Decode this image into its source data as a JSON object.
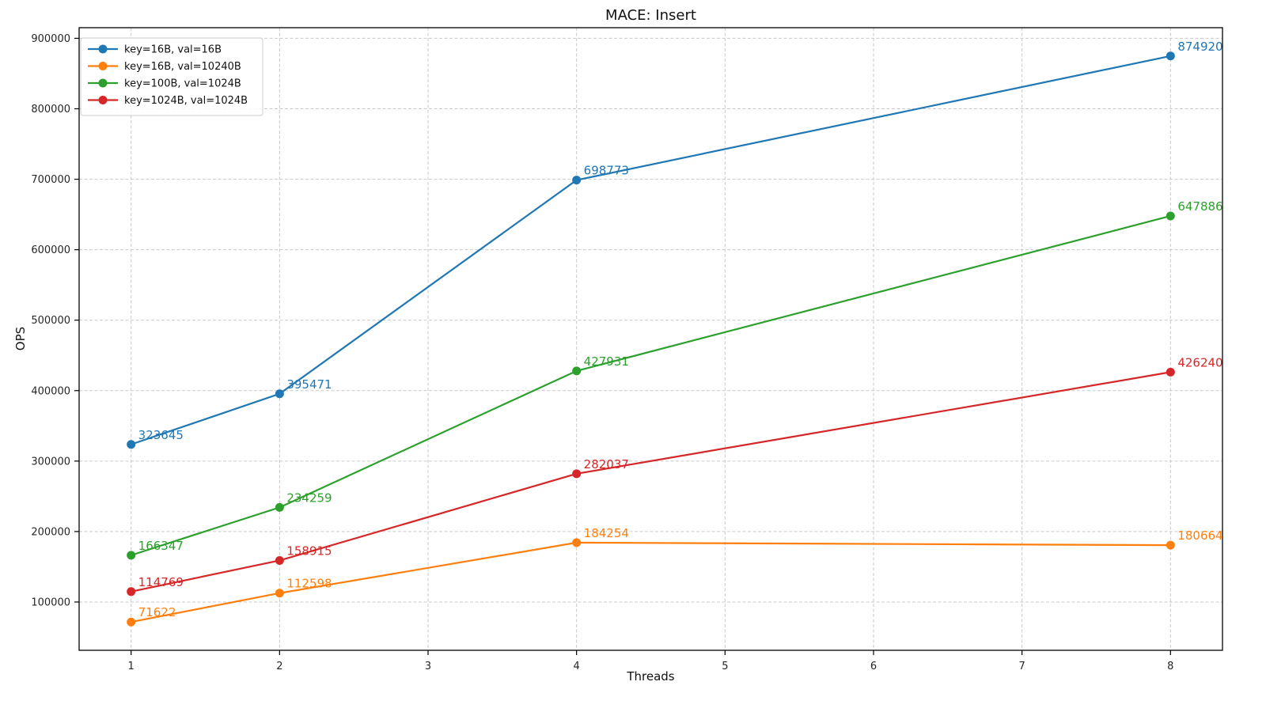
{
  "chart_data": {
    "type": "line",
    "title": "MACE: Insert",
    "xlabel": "Threads",
    "ylabel": "OPS",
    "x": [
      1,
      2,
      4,
      8
    ],
    "x_ticks": [
      1,
      2,
      3,
      4,
      5,
      6,
      7,
      8
    ],
    "y_ticks": [
      100000,
      200000,
      300000,
      400000,
      500000,
      600000,
      700000,
      800000,
      900000
    ],
    "xlim": [
      0.65,
      8.35
    ],
    "ylim": [
      31457,
      915085
    ],
    "grid": true,
    "grid_style": "dashed",
    "legend_position": "upper-left",
    "marker": "circle",
    "series": [
      {
        "name": "key=16B, val=16B",
        "color": "#1f77b4",
        "values": [
          323645,
          395471,
          698773,
          874920
        ]
      },
      {
        "name": "key=16B, val=10240B",
        "color": "#ff7f0e",
        "values": [
          71622,
          112598,
          184254,
          180664
        ]
      },
      {
        "name": "key=100B, val=1024B",
        "color": "#2ca02c",
        "values": [
          166347,
          234259,
          427931,
          647886
        ]
      },
      {
        "name": "key=1024B, val=1024B",
        "color": "#d62728",
        "values": [
          114769,
          158915,
          282037,
          426240
        ]
      }
    ],
    "colors": {
      "grid": "#c9c9c9",
      "spine": "#000000",
      "tick_label": "#262626",
      "legend_border": "#cccccc",
      "background": "#ffffff"
    }
  }
}
